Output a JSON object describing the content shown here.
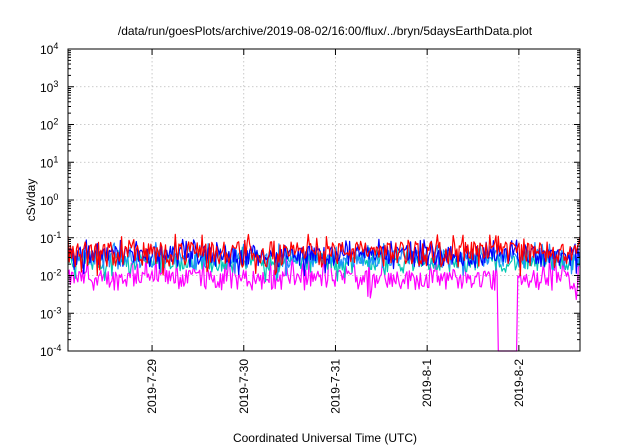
{
  "chart_data": {
    "type": "line",
    "title": "/data/run/goesPlots/archive/2019-08-02/16:00/flux/../bryn/5daysEarthData.plot",
    "xlabel": "Coordinated Universal Time (UTC)",
    "ylabel": "cSv/day",
    "yscale": "log",
    "ylim": [
      0.0001,
      10000
    ],
    "y_ticks": [
      {
        "base": "10",
        "exp": "-4",
        "value": 0.0001
      },
      {
        "base": "10",
        "exp": "-3",
        "value": 0.001
      },
      {
        "base": "10",
        "exp": "-2",
        "value": 0.01
      },
      {
        "base": "10",
        "exp": "-1",
        "value": 0.1
      },
      {
        "base": "10",
        "exp": "0",
        "value": 1
      },
      {
        "base": "10",
        "exp": "1",
        "value": 10
      },
      {
        "base": "10",
        "exp": "2",
        "value": 100
      },
      {
        "base": "10",
        "exp": "3",
        "value": 1000
      },
      {
        "base": "10",
        "exp": "4",
        "value": 10000
      }
    ],
    "xlim": [
      "2019-07-28T02:00",
      "2019-08-02T16:00"
    ],
    "x_ticks": [
      {
        "label": "2019-7-29",
        "value": "2019-07-29T00:00"
      },
      {
        "label": "2019-7-30",
        "value": "2019-07-30T00:00"
      },
      {
        "label": "2019-7-31",
        "value": "2019-07-31T00:00"
      },
      {
        "label": "2019-8-1",
        "value": "2019-08-01T00:00"
      },
      {
        "label": "2019-8-2",
        "value": "2019-08-02T00:00"
      }
    ],
    "grid": true,
    "legend": "none",
    "series": [
      {
        "color": "#ff0000",
        "base": 0.047,
        "amplitude": 0.65
      },
      {
        "color": "#0000ff",
        "base": 0.038,
        "amplitude": 0.55
      },
      {
        "color": "#1e90ff",
        "base": 0.032,
        "amplitude": 0.5
      },
      {
        "color": "#00c8b4",
        "base": 0.024,
        "amplitude": 0.5
      },
      {
        "color": "#ff00ff",
        "base": 0.009,
        "amplitude": 0.55
      }
    ],
    "annotations": [
      {
        "text": "magenta series drops below 1e-4 near 2019-08-01 21:00",
        "time": "2019-08-01T21:00"
      }
    ]
  }
}
